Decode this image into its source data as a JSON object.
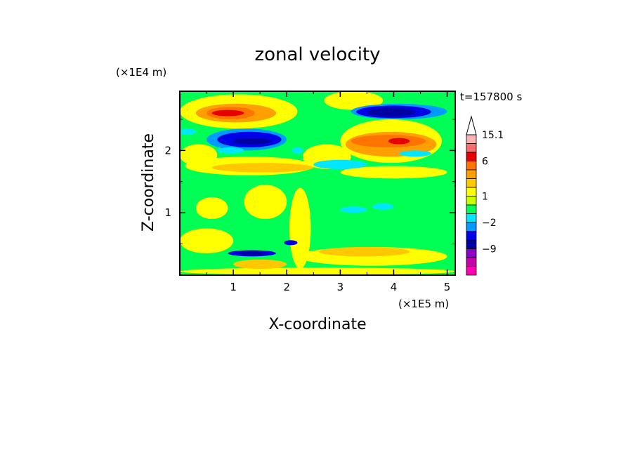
{
  "chart_data": {
    "type": "heatmap",
    "title": "zonal velocity",
    "xlabel": "X-coordinate",
    "ylabel": "Z-coordinate",
    "x_unit": "(×1E5 m)",
    "y_unit": "(×1E4 m)",
    "time_label": "t=157800 s",
    "x_ticks": [
      "1",
      "2",
      "3",
      "4",
      "5"
    ],
    "y_ticks": [
      "1",
      "2"
    ],
    "xlim": [
      0,
      5.15
    ],
    "ylim": [
      0,
      2.95
    ],
    "background_color": "#00ff55",
    "colorbar": {
      "labels": [
        "15.1",
        "6",
        "1",
        "−2",
        "−9"
      ],
      "label_values": [
        15.1,
        6,
        1,
        -2,
        -9
      ],
      "bands": [
        {
          "lo": 15.1,
          "hi": 30,
          "color": "#ffffff"
        },
        {
          "lo": 12,
          "hi": 15.1,
          "color": "#ffb4b4"
        },
        {
          "lo": 9,
          "hi": 12,
          "color": "#ff6e6e"
        },
        {
          "lo": 6,
          "hi": 9,
          "color": "#e60000"
        },
        {
          "lo": 4,
          "hi": 6,
          "color": "#ff7300"
        },
        {
          "lo": 3,
          "hi": 4,
          "color": "#ffa000"
        },
        {
          "lo": 2,
          "hi": 3,
          "color": "#ffc800"
        },
        {
          "lo": 1,
          "hi": 2,
          "color": "#ffff00"
        },
        {
          "lo": 0,
          "hi": 1,
          "color": "#c8ff00"
        },
        {
          "lo": -1,
          "hi": 0,
          "color": "#00ff55"
        },
        {
          "lo": -2,
          "hi": -1,
          "color": "#00e6ff"
        },
        {
          "lo": -3,
          "hi": -2,
          "color": "#009bff"
        },
        {
          "lo": -6,
          "hi": -3,
          "color": "#0000e6"
        },
        {
          "lo": -9,
          "hi": -6,
          "color": "#0000a0"
        },
        {
          "lo": -12,
          "hi": -9,
          "color": "#8c00c8"
        },
        {
          "lo": -15,
          "hi": -12,
          "color": "#c800aa"
        },
        {
          "lo": -30,
          "hi": -15,
          "color": "#ff00b4"
        }
      ]
    },
    "regions": [
      {
        "x": [
          0,
          5.15
        ],
        "z": [
          0.0,
          0.12
        ],
        "v": 1.5
      },
      {
        "x": [
          0,
          1.0
        ],
        "z": [
          0.35,
          0.75
        ],
        "v": 1.5
      },
      {
        "x": [
          0.3,
          0.9
        ],
        "z": [
          0.9,
          1.25
        ],
        "v": 1.5
      },
      {
        "x": [
          1.2,
          2.0
        ],
        "z": [
          0.9,
          1.45
        ],
        "v": 1.5
      },
      {
        "x": [
          2.05,
          2.45
        ],
        "z": [
          0.1,
          1.4
        ],
        "v": 1.5
      },
      {
        "x": [
          1.0,
          2.0
        ],
        "z": [
          0.1,
          0.25
        ],
        "v": 2.5
      },
      {
        "x": [
          2.2,
          5.0
        ],
        "z": [
          0.15,
          0.45
        ],
        "v": 1.5
      },
      {
        "x": [
          2.6,
          4.3
        ],
        "z": [
          0.3,
          0.45
        ],
        "v": 2.5
      },
      {
        "x": [
          0.1,
          2.5
        ],
        "z": [
          1.6,
          1.9
        ],
        "v": 1.5
      },
      {
        "x": [
          0.6,
          2.5
        ],
        "z": [
          1.65,
          1.8
        ],
        "v": 2.5
      },
      {
        "x": [
          3.0,
          5.0
        ],
        "z": [
          1.55,
          1.75
        ],
        "v": 1.5
      },
      {
        "x": [
          0,
          0.7
        ],
        "z": [
          1.75,
          2.1
        ],
        "v": 1.5
      },
      {
        "x": [
          2.3,
          3.2
        ],
        "z": [
          1.7,
          2.1
        ],
        "v": 1.5
      },
      {
        "x": [
          0,
          2.2
        ],
        "z": [
          2.35,
          2.9
        ],
        "v": 1.5
      },
      {
        "x": [
          0.3,
          1.8
        ],
        "z": [
          2.45,
          2.75
        ],
        "v": 3.5
      },
      {
        "x": [
          0.5,
          1.4
        ],
        "z": [
          2.5,
          2.7
        ],
        "v": 5
      },
      {
        "x": [
          0.6,
          1.2
        ],
        "z": [
          2.55,
          2.65
        ],
        "v": 7
      },
      {
        "x": [
          2.7,
          3.8
        ],
        "z": [
          2.65,
          2.95
        ],
        "v": 1.5
      },
      {
        "x": [
          3.0,
          4.9
        ],
        "z": [
          1.8,
          2.5
        ],
        "v": 1.5
      },
      {
        "x": [
          3.1,
          4.8
        ],
        "z": [
          1.9,
          2.3
        ],
        "v": 3.5
      },
      {
        "x": [
          3.2,
          4.6
        ],
        "z": [
          2.05,
          2.25
        ],
        "v": 5
      },
      {
        "x": [
          3.9,
          4.3
        ],
        "z": [
          2.1,
          2.2
        ],
        "v": 7
      },
      {
        "x": [
          0,
          0.3
        ],
        "z": [
          2.25,
          2.35
        ],
        "v": -1.5
      },
      {
        "x": [
          0.5,
          2.0
        ],
        "z": [
          2.0,
          2.35
        ],
        "v": -2.5
      },
      {
        "x": [
          0.7,
          1.9
        ],
        "z": [
          2.05,
          2.3
        ],
        "v": -4
      },
      {
        "x": [
          1.0,
          1.7
        ],
        "z": [
          2.1,
          2.2
        ],
        "v": -7
      },
      {
        "x": [
          0.7,
          1.2
        ],
        "z": [
          1.95,
          2.05
        ],
        "v": -1.5
      },
      {
        "x": [
          2.1,
          2.3
        ],
        "z": [
          1.95,
          2.05
        ],
        "v": -1.5
      },
      {
        "x": [
          3.2,
          5.0
        ],
        "z": [
          2.5,
          2.75
        ],
        "v": -2.5
      },
      {
        "x": [
          3.3,
          4.7
        ],
        "z": [
          2.52,
          2.72
        ],
        "v": -4
      },
      {
        "x": [
          3.5,
          4.4
        ],
        "z": [
          2.55,
          2.68
        ],
        "v": -7
      },
      {
        "x": [
          2.5,
          3.5
        ],
        "z": [
          1.7,
          1.85
        ],
        "v": -1.5
      },
      {
        "x": [
          4.1,
          4.7
        ],
        "z": [
          1.9,
          2.0
        ],
        "v": -1.5
      },
      {
        "x": [
          3.0,
          3.5
        ],
        "z": [
          1.0,
          1.1
        ],
        "v": -1.5
      },
      {
        "x": [
          3.6,
          4.0
        ],
        "z": [
          1.05,
          1.15
        ],
        "v": -1.5
      },
      {
        "x": [
          0.9,
          1.8
        ],
        "z": [
          0.3,
          0.4
        ],
        "v": -4
      },
      {
        "x": [
          1.1,
          1.6
        ],
        "z": [
          0.32,
          0.38
        ],
        "v": -7
      },
      {
        "x": [
          1.95,
          2.2
        ],
        "z": [
          0.48,
          0.56
        ],
        "v": -4
      }
    ]
  }
}
